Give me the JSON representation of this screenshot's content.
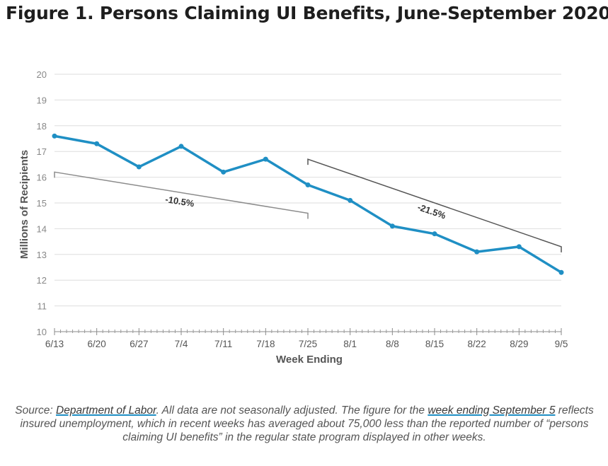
{
  "title": "Figure 1. Persons Claiming UI Benefits, June-September 2020",
  "colors": {
    "series": "#1f8fc4",
    "grid": "#dedede",
    "trend1": "#8c8c8c",
    "trend2": "#555555",
    "axis_text": "#888888"
  },
  "chart_data": {
    "type": "line",
    "title": "Figure 1. Persons Claiming UI Benefits, June-September 2020",
    "xlabel": "Week Ending",
    "ylabel": "Millions of Recipients",
    "ylim": [
      10,
      20
    ],
    "yticks": [
      10,
      11,
      12,
      13,
      14,
      15,
      16,
      17,
      18,
      19,
      20
    ],
    "grid": true,
    "categories": [
      "6/13",
      "6/20",
      "6/27",
      "7/4",
      "7/11",
      "7/18",
      "7/25",
      "8/1",
      "8/8",
      "8/15",
      "8/22",
      "8/29",
      "9/5"
    ],
    "series": [
      {
        "values": [
          17.6,
          17.3,
          16.4,
          17.2,
          16.2,
          16.7,
          15.7,
          15.1,
          14.1,
          13.8,
          13.1,
          13.3,
          12.3
        ]
      }
    ],
    "annotations": [
      {
        "label": "-10.5%",
        "from": {
          "x": "6/13",
          "y": 16.2
        },
        "to": {
          "x": "7/25",
          "y": 14.6
        }
      },
      {
        "label": "-21.5%",
        "from": {
          "x": "7/25",
          "y": 16.7
        },
        "to": {
          "x": "9/5",
          "y": 13.3
        }
      }
    ]
  },
  "source": {
    "prefix": "Source: ",
    "link1": "Department of Labor",
    "part2": ". All data are not seasonally adjusted. The figure for the ",
    "link2": "week ending September 5",
    "part3": " reflects insured unemployment, which in recent weeks has averaged about 75,000 less than the reported number of “persons claiming UI benefits” in the regular state program displayed in other weeks."
  }
}
